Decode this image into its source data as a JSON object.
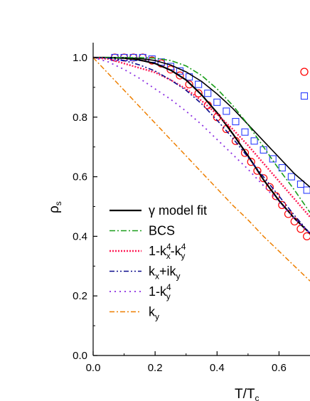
{
  "chart_data": {
    "type": "line",
    "title": "",
    "xlabel": "T/T",
    "xlabel_sub": "c",
    "ylabel": "ρ",
    "ylabel_sub": "s",
    "xlim": [
      0.0,
      0.7
    ],
    "ylim": [
      0.0,
      1.05
    ],
    "x_ticks": [
      "0.0",
      "0.2",
      "0.4",
      "0.6"
    ],
    "y_ticks": [
      "0.0",
      "0.2",
      "0.4",
      "0.6",
      "0.8",
      "1.0"
    ],
    "grid": false,
    "legend_position": "lower-left",
    "legend": [
      {
        "key": "gamma",
        "label": "γ model fit"
      },
      {
        "key": "bcs",
        "label": "BCS"
      },
      {
        "key": "k4xy",
        "label": "1-k",
        "sup1": "4",
        "sub1": "x",
        "mid": "-k",
        "sup2": "4",
        "sub2": "y"
      },
      {
        "key": "kxiky",
        "label": "k",
        "sub1": "x",
        "mid": "+ik",
        "sub2": "y"
      },
      {
        "key": "k4y",
        "label": "1-k",
        "sup1": "4",
        "sub1": "y"
      },
      {
        "key": "ky",
        "label": "k",
        "sub1": "y"
      }
    ],
    "series": [
      {
        "key": "gamma",
        "color": "#000000",
        "dash": "",
        "width": 2.2,
        "x": [
          0.0,
          0.05,
          0.1,
          0.15,
          0.2,
          0.25,
          0.3,
          0.35,
          0.4,
          0.45,
          0.5,
          0.55,
          0.6,
          0.65,
          0.7
        ],
        "y": [
          1.0,
          1.0,
          0.998,
          0.992,
          0.98,
          0.958,
          0.925,
          0.875,
          0.815,
          0.745,
          0.67,
          0.59,
          0.52,
          0.46,
          0.41
        ]
      },
      {
        "key": "gamma2",
        "color": "#000000",
        "dash": "",
        "width": 1.6,
        "x": [
          0.0,
          0.05,
          0.1,
          0.15,
          0.2,
          0.25,
          0.3,
          0.35,
          0.4,
          0.45,
          0.5,
          0.55,
          0.6,
          0.65,
          0.7
        ],
        "y": [
          1.0,
          1.0,
          1.0,
          0.997,
          0.99,
          0.975,
          0.952,
          0.92,
          0.878,
          0.83,
          0.775,
          0.72,
          0.665,
          0.61,
          0.565
        ]
      },
      {
        "key": "bcs",
        "color": "#1a9e1a",
        "dash": "8,3,2,3",
        "width": 1.6,
        "x": [
          0.0,
          0.05,
          0.1,
          0.15,
          0.2,
          0.25,
          0.3,
          0.35,
          0.4,
          0.45,
          0.5,
          0.55,
          0.6,
          0.65,
          0.7
        ],
        "y": [
          1.0,
          1.0,
          1.0,
          1.0,
          0.998,
          0.99,
          0.972,
          0.94,
          0.895,
          0.84,
          0.775,
          0.7,
          0.625,
          0.555,
          0.48
        ]
      },
      {
        "key": "k4xy",
        "color": "#ff1a55",
        "dash": "2,2",
        "width": 2.4,
        "x": [
          0.0,
          0.05,
          0.1,
          0.15,
          0.2,
          0.25,
          0.3,
          0.35,
          0.4,
          0.45,
          0.5,
          0.55,
          0.6,
          0.65,
          0.7
        ],
        "y": [
          1.0,
          0.995,
          0.98,
          0.965,
          0.95,
          0.925,
          0.895,
          0.855,
          0.81,
          0.76,
          0.705,
          0.645,
          0.585,
          0.525,
          0.465
        ]
      },
      {
        "key": "kxiky",
        "color": "#0b0b8c",
        "dash": "7,3,2,3,2,3",
        "width": 1.6,
        "x": [
          0.0,
          0.05,
          0.1,
          0.15,
          0.2,
          0.25,
          0.3,
          0.35,
          0.4,
          0.45,
          0.5,
          0.55,
          0.6,
          0.65,
          0.7
        ],
        "y": [
          1.0,
          0.998,
          0.99,
          0.975,
          0.955,
          0.925,
          0.89,
          0.845,
          0.79,
          0.73,
          0.665,
          0.6,
          0.535,
          0.47,
          0.41
        ]
      },
      {
        "key": "k4y",
        "color": "#8a2be2",
        "dash": "2,5",
        "width": 1.8,
        "x": [
          0.0,
          0.05,
          0.1,
          0.15,
          0.2,
          0.25,
          0.3,
          0.35,
          0.4,
          0.45,
          0.5,
          0.55,
          0.6,
          0.65,
          0.7
        ],
        "y": [
          1.0,
          0.985,
          0.96,
          0.93,
          0.895,
          0.86,
          0.82,
          0.775,
          0.725,
          0.675,
          0.625,
          0.57,
          0.515,
          0.46,
          0.41
        ]
      },
      {
        "key": "ky",
        "color": "#ee7f00",
        "dash": "7,3,2,3",
        "width": 1.5,
        "x": [
          0.0,
          0.05,
          0.1,
          0.15,
          0.2,
          0.25,
          0.3,
          0.35,
          0.4,
          0.45,
          0.5,
          0.55,
          0.6,
          0.65,
          0.7
        ],
        "y": [
          1.0,
          0.945,
          0.89,
          0.835,
          0.78,
          0.725,
          0.67,
          0.615,
          0.56,
          0.505,
          0.455,
          0.4,
          0.35,
          0.3,
          0.25
        ]
      }
    ],
    "markers": [
      {
        "key": "circles",
        "shape": "circle",
        "color": "#ff0000",
        "x": [
          0.07,
          0.1,
          0.13,
          0.16,
          0.19,
          0.22,
          0.25,
          0.28,
          0.31,
          0.34,
          0.37,
          0.4,
          0.43,
          0.46,
          0.49,
          0.51,
          0.53,
          0.55,
          0.57,
          0.59,
          0.61,
          0.63,
          0.65,
          0.67,
          0.69
        ],
        "y": [
          1.0,
          1.0,
          1.0,
          1.0,
          0.99,
          0.98,
          0.96,
          0.94,
          0.91,
          0.88,
          0.84,
          0.8,
          0.76,
          0.72,
          0.68,
          0.65,
          0.62,
          0.595,
          0.565,
          0.535,
          0.505,
          0.475,
          0.45,
          0.425,
          0.4
        ]
      },
      {
        "key": "squares",
        "shape": "square",
        "color": "#2a3cff",
        "x": [
          0.07,
          0.1,
          0.13,
          0.16,
          0.19,
          0.22,
          0.25,
          0.28,
          0.31,
          0.34,
          0.37,
          0.4,
          0.43,
          0.46,
          0.49,
          0.52,
          0.55,
          0.58,
          0.61,
          0.64,
          0.67,
          0.69
        ],
        "y": [
          1.0,
          1.0,
          1.0,
          1.0,
          0.995,
          0.985,
          0.97,
          0.955,
          0.935,
          0.91,
          0.88,
          0.85,
          0.82,
          0.785,
          0.75,
          0.72,
          0.69,
          0.66,
          0.63,
          0.6,
          0.575,
          0.555
        ]
      }
    ],
    "right_legend_markers": [
      {
        "shape": "circle",
        "color": "#ff0000"
      },
      {
        "shape": "square",
        "color": "#2a3cff"
      }
    ]
  }
}
